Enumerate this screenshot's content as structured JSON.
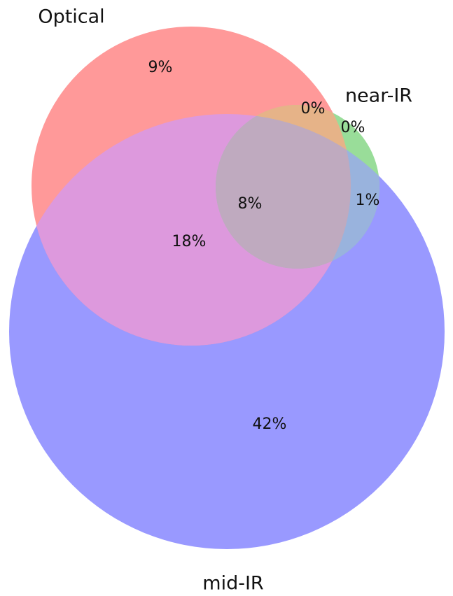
{
  "chart_data": {
    "type": "venn",
    "sets": [
      {
        "name": "Optical",
        "color": "#ff9999"
      },
      {
        "name": "near-IR",
        "color": "#99dd99"
      },
      {
        "name": "mid-IR",
        "color": "#9999ff"
      }
    ],
    "values": [
      9,
      0,
      0,
      18,
      8,
      1,
      42
    ],
    "value_labels": [
      "9%",
      "0%",
      "0%",
      "18%",
      "8%",
      "1%",
      "42%"
    ]
  }
}
